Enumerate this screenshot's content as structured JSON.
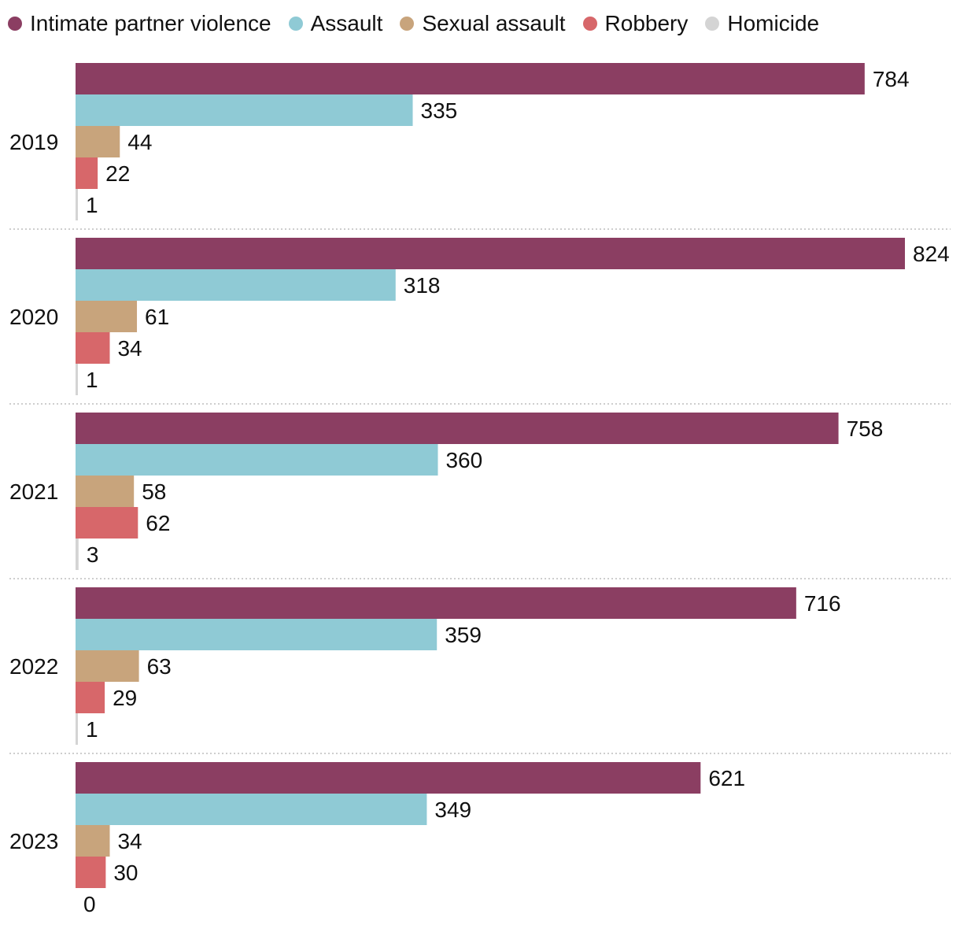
{
  "chart_data": {
    "type": "bar",
    "orientation": "horizontal",
    "title": "",
    "xlabel": "",
    "ylabel": "",
    "xlim": [
      0,
      824
    ],
    "grid": false,
    "legend_position": "top-left",
    "categories": [
      "2019",
      "2020",
      "2021",
      "2022",
      "2023"
    ],
    "series": [
      {
        "name": "Intimate partner violence",
        "color": "#8B3E62",
        "values": [
          784,
          824,
          758,
          716,
          621
        ]
      },
      {
        "name": "Assault",
        "color": "#8FCAD5",
        "values": [
          335,
          318,
          360,
          359,
          349
        ]
      },
      {
        "name": "Sexual assault",
        "color": "#C8A47C",
        "values": [
          44,
          61,
          58,
          63,
          34
        ]
      },
      {
        "name": "Robbery",
        "color": "#D7676A",
        "values": [
          22,
          34,
          62,
          29,
          30
        ]
      },
      {
        "name": "Homicide",
        "color": "#D4D4D4",
        "values": [
          1,
          1,
          3,
          1,
          0
        ]
      }
    ]
  }
}
